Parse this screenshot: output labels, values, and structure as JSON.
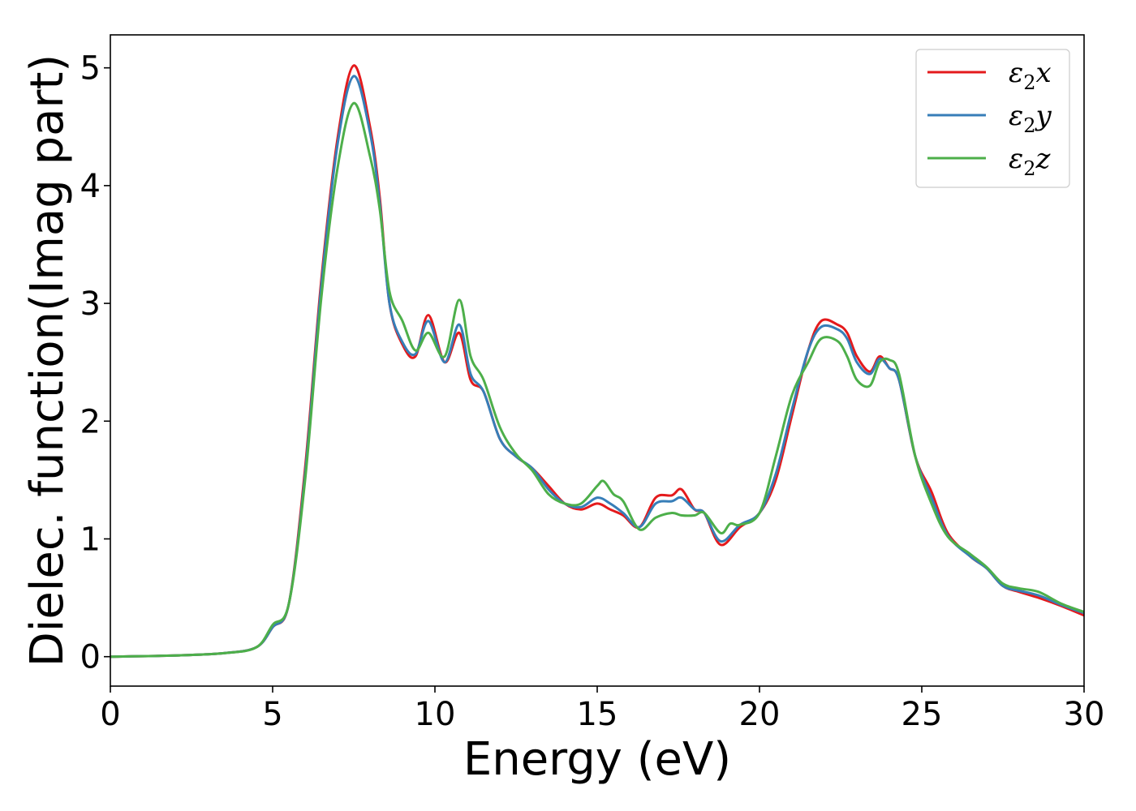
{
  "chart_data": {
    "type": "line",
    "title": "",
    "xlabel": "Energy (eV)",
    "ylabel": "Dielec. function(Imag part)",
    "xlim": [
      0,
      30
    ],
    "ylim": [
      -0.25,
      5.28
    ],
    "xticks": [
      0,
      5,
      10,
      15,
      20,
      25,
      30
    ],
    "xtick_labels": [
      "0",
      "5",
      "10",
      "15",
      "20",
      "25",
      "30"
    ],
    "yticks": [
      0,
      1,
      2,
      3,
      4,
      5
    ],
    "ytick_labels": [
      "0",
      "1",
      "2",
      "3",
      "4",
      "5"
    ],
    "grid": false,
    "legend_position": "top-right",
    "series": [
      {
        "name": "ε2x",
        "legend": {
          "base": "ε",
          "sub": "2",
          "var": "x"
        },
        "color": "#e41a1c",
        "points": [
          [
            0,
            0.0
          ],
          [
            2,
            0.01
          ],
          [
            3.5,
            0.03
          ],
          [
            4.5,
            0.08
          ],
          [
            5.0,
            0.25
          ],
          [
            5.5,
            0.45
          ],
          [
            6.0,
            1.6
          ],
          [
            6.5,
            3.2
          ],
          [
            7.0,
            4.4
          ],
          [
            7.5,
            5.02
          ],
          [
            8.0,
            4.5
          ],
          [
            8.3,
            3.9
          ],
          [
            8.6,
            3.0
          ],
          [
            9.0,
            2.65
          ],
          [
            9.4,
            2.55
          ],
          [
            9.8,
            2.9
          ],
          [
            10.3,
            2.5
          ],
          [
            10.75,
            2.75
          ],
          [
            11.1,
            2.35
          ],
          [
            11.5,
            2.25
          ],
          [
            12.0,
            1.85
          ],
          [
            12.5,
            1.7
          ],
          [
            13.0,
            1.6
          ],
          [
            13.5,
            1.45
          ],
          [
            14.0,
            1.3
          ],
          [
            14.5,
            1.25
          ],
          [
            15.0,
            1.3
          ],
          [
            15.4,
            1.25
          ],
          [
            15.8,
            1.2
          ],
          [
            16.3,
            1.1
          ],
          [
            16.8,
            1.35
          ],
          [
            17.3,
            1.37
          ],
          [
            17.6,
            1.42
          ],
          [
            18.0,
            1.25
          ],
          [
            18.3,
            1.22
          ],
          [
            18.8,
            0.95
          ],
          [
            19.4,
            1.1
          ],
          [
            20.0,
            1.22
          ],
          [
            20.5,
            1.5
          ],
          [
            21.0,
            2.05
          ],
          [
            21.5,
            2.6
          ],
          [
            21.9,
            2.85
          ],
          [
            22.4,
            2.82
          ],
          [
            22.7,
            2.75
          ],
          [
            23.0,
            2.55
          ],
          [
            23.4,
            2.42
          ],
          [
            23.7,
            2.55
          ],
          [
            24.0,
            2.45
          ],
          [
            24.3,
            2.35
          ],
          [
            24.8,
            1.7
          ],
          [
            25.3,
            1.4
          ],
          [
            25.8,
            1.05
          ],
          [
            26.5,
            0.85
          ],
          [
            27.0,
            0.75
          ],
          [
            27.5,
            0.6
          ],
          [
            28.0,
            0.55
          ],
          [
            28.6,
            0.5
          ],
          [
            29.3,
            0.43
          ],
          [
            30,
            0.35
          ]
        ]
      },
      {
        "name": "ε2y",
        "legend": {
          "base": "ε",
          "sub": "2",
          "var": "y"
        },
        "color": "#377eb8",
        "points": [
          [
            0,
            0.0
          ],
          [
            2,
            0.01
          ],
          [
            3.5,
            0.03
          ],
          [
            4.5,
            0.08
          ],
          [
            5.0,
            0.25
          ],
          [
            5.5,
            0.45
          ],
          [
            6.0,
            1.55
          ],
          [
            6.5,
            3.15
          ],
          [
            7.0,
            4.35
          ],
          [
            7.5,
            4.93
          ],
          [
            8.0,
            4.45
          ],
          [
            8.3,
            3.85
          ],
          [
            8.6,
            3.0
          ],
          [
            9.0,
            2.67
          ],
          [
            9.4,
            2.57
          ],
          [
            9.8,
            2.85
          ],
          [
            10.3,
            2.5
          ],
          [
            10.75,
            2.82
          ],
          [
            11.1,
            2.4
          ],
          [
            11.5,
            2.25
          ],
          [
            12.0,
            1.85
          ],
          [
            12.5,
            1.7
          ],
          [
            13.0,
            1.6
          ],
          [
            13.5,
            1.42
          ],
          [
            14.0,
            1.3
          ],
          [
            14.5,
            1.27
          ],
          [
            15.0,
            1.35
          ],
          [
            15.4,
            1.3
          ],
          [
            15.8,
            1.22
          ],
          [
            16.3,
            1.1
          ],
          [
            16.8,
            1.3
          ],
          [
            17.3,
            1.32
          ],
          [
            17.6,
            1.35
          ],
          [
            18.0,
            1.25
          ],
          [
            18.3,
            1.22
          ],
          [
            18.8,
            0.98
          ],
          [
            19.4,
            1.12
          ],
          [
            20.0,
            1.22
          ],
          [
            20.5,
            1.55
          ],
          [
            21.0,
            2.1
          ],
          [
            21.5,
            2.6
          ],
          [
            21.9,
            2.8
          ],
          [
            22.4,
            2.78
          ],
          [
            22.7,
            2.7
          ],
          [
            23.0,
            2.5
          ],
          [
            23.4,
            2.4
          ],
          [
            23.7,
            2.53
          ],
          [
            24.0,
            2.45
          ],
          [
            24.3,
            2.35
          ],
          [
            24.8,
            1.7
          ],
          [
            25.3,
            1.35
          ],
          [
            25.8,
            1.03
          ],
          [
            26.5,
            0.85
          ],
          [
            27.0,
            0.75
          ],
          [
            27.5,
            0.6
          ],
          [
            28.0,
            0.56
          ],
          [
            28.6,
            0.52
          ],
          [
            29.3,
            0.44
          ],
          [
            30,
            0.37
          ]
        ]
      },
      {
        "name": "ε2z",
        "legend": {
          "base": "ε",
          "sub": "2",
          "var": "z"
        },
        "color": "#4daf4a",
        "points": [
          [
            0,
            0.0
          ],
          [
            2,
            0.01
          ],
          [
            3.5,
            0.03
          ],
          [
            4.5,
            0.08
          ],
          [
            5.0,
            0.27
          ],
          [
            5.5,
            0.45
          ],
          [
            6.0,
            1.5
          ],
          [
            6.5,
            3.05
          ],
          [
            7.0,
            4.15
          ],
          [
            7.5,
            4.7
          ],
          [
            8.0,
            4.25
          ],
          [
            8.3,
            3.8
          ],
          [
            8.6,
            3.1
          ],
          [
            9.0,
            2.85
          ],
          [
            9.4,
            2.6
          ],
          [
            9.8,
            2.75
          ],
          [
            10.3,
            2.55
          ],
          [
            10.75,
            3.03
          ],
          [
            11.1,
            2.55
          ],
          [
            11.5,
            2.35
          ],
          [
            12.0,
            1.95
          ],
          [
            12.5,
            1.72
          ],
          [
            13.0,
            1.58
          ],
          [
            13.5,
            1.38
          ],
          [
            14.0,
            1.3
          ],
          [
            14.5,
            1.3
          ],
          [
            15.0,
            1.45
          ],
          [
            15.2,
            1.49
          ],
          [
            15.5,
            1.38
          ],
          [
            15.8,
            1.32
          ],
          [
            16.3,
            1.08
          ],
          [
            16.8,
            1.18
          ],
          [
            17.3,
            1.22
          ],
          [
            17.6,
            1.2
          ],
          [
            18.0,
            1.2
          ],
          [
            18.3,
            1.22
          ],
          [
            18.8,
            1.05
          ],
          [
            19.1,
            1.13
          ],
          [
            19.4,
            1.12
          ],
          [
            20.0,
            1.22
          ],
          [
            20.5,
            1.7
          ],
          [
            21.0,
            2.22
          ],
          [
            21.5,
            2.5
          ],
          [
            21.9,
            2.7
          ],
          [
            22.4,
            2.68
          ],
          [
            22.7,
            2.55
          ],
          [
            23.0,
            2.35
          ],
          [
            23.4,
            2.3
          ],
          [
            23.7,
            2.5
          ],
          [
            24.0,
            2.52
          ],
          [
            24.3,
            2.4
          ],
          [
            24.8,
            1.7
          ],
          [
            25.3,
            1.3
          ],
          [
            25.8,
            1.02
          ],
          [
            26.5,
            0.87
          ],
          [
            27.0,
            0.76
          ],
          [
            27.5,
            0.62
          ],
          [
            28.0,
            0.58
          ],
          [
            28.6,
            0.55
          ],
          [
            29.3,
            0.45
          ],
          [
            30,
            0.38
          ]
        ]
      }
    ]
  }
}
